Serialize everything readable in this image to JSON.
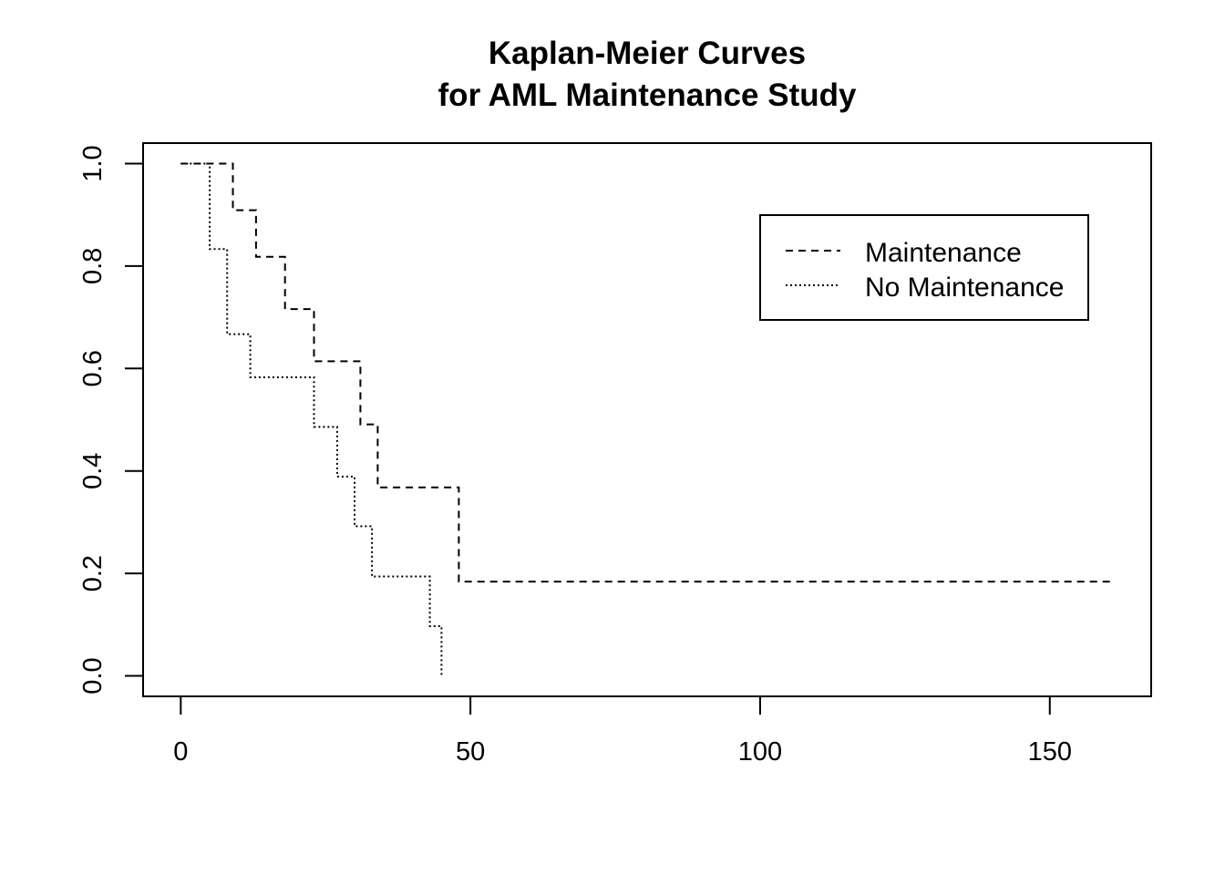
{
  "chart_data": {
    "type": "line",
    "subtype": "step",
    "title_line1": "Kaplan-Meier Curves",
    "title_line2": "for AML Maintenance Study",
    "xlabel": "",
    "ylabel": "",
    "xlim": [
      -6.5,
      167.5
    ],
    "ylim": [
      -0.04,
      1.04
    ],
    "xticks": [
      0,
      50,
      100,
      150
    ],
    "xtick_labels": [
      "0",
      "50",
      "100",
      "150"
    ],
    "yticks": [
      0.0,
      0.2,
      0.4,
      0.6,
      0.8,
      1.0
    ],
    "ytick_labels": [
      "0.0",
      "0.2",
      "0.4",
      "0.6",
      "0.8",
      "1.0"
    ],
    "grid": false,
    "legend_position": "top-right",
    "series": [
      {
        "name": "Maintenance",
        "line_style": "dashed",
        "color": "#000000",
        "x": [
          0,
          9,
          13,
          18,
          23,
          31,
          34,
          48,
          161
        ],
        "y": [
          1.0,
          0.909,
          0.818,
          0.716,
          0.614,
          0.491,
          0.368,
          0.184,
          0.184
        ]
      },
      {
        "name": "No Maintenance",
        "line_style": "dotted",
        "color": "#000000",
        "x": [
          0,
          5,
          8,
          12,
          23,
          27,
          30,
          33,
          43,
          45
        ],
        "y": [
          1.0,
          0.833,
          0.667,
          0.583,
          0.486,
          0.389,
          0.292,
          0.194,
          0.097,
          0.0
        ]
      }
    ]
  }
}
